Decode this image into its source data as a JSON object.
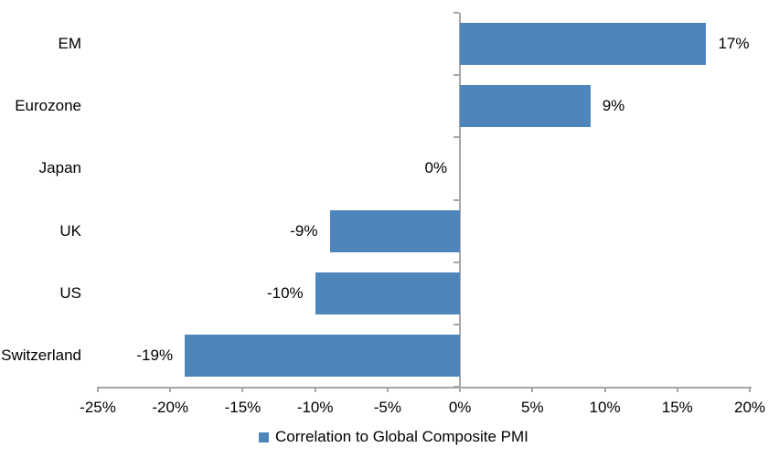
{
  "chart_data": {
    "type": "bar",
    "orientation": "horizontal",
    "title": "",
    "categories": [
      "EM",
      "Eurozone",
      "Japan",
      "UK",
      "US",
      "Switzerland"
    ],
    "values": [
      17,
      9,
      0,
      -9,
      -10,
      -19
    ],
    "value_labels": [
      "17%",
      "9%",
      "0%",
      "-9%",
      "-10%",
      "-19%"
    ],
    "series_name": "Correlation to Global Composite PMI",
    "x_ticks": [
      "-25%",
      "-20%",
      "-15%",
      "-10%",
      "-5%",
      "0%",
      "5%",
      "10%",
      "15%",
      "20%"
    ],
    "x_tick_values": [
      -25,
      -20,
      -15,
      -10,
      -5,
      0,
      5,
      10,
      15,
      20
    ],
    "xlim": [
      -25,
      20
    ],
    "grid": "off",
    "legend_position": "bottom",
    "bar_color": "#4E86BC",
    "axis_color": "#A6A6A6",
    "text_color": "#000000",
    "background_color": "#FFFFFF"
  }
}
